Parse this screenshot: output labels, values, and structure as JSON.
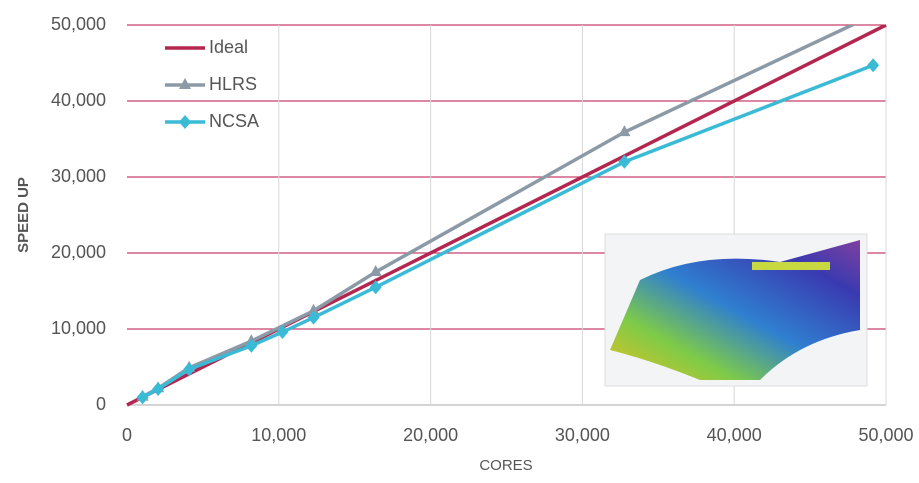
{
  "chart_data": {
    "type": "line",
    "x_label": "CORES",
    "y_label": "SPEED UP",
    "xlim": [
      0,
      50000
    ],
    "ylim": [
      0,
      50000
    ],
    "xticks": [
      0,
      {
        "value": 10000,
        "label": "10,000"
      },
      {
        "value": 20000,
        "label": "20,000"
      },
      {
        "value": 30000,
        "label": "30,000"
      },
      {
        "value": 40000,
        "label": "40,000"
      },
      {
        "value": 50000,
        "label": "50,000"
      }
    ],
    "yticks": [
      0,
      {
        "value": 10000,
        "label": "10,000"
      },
      {
        "value": 20000,
        "label": "20,000"
      },
      {
        "value": 30000,
        "label": "30,000"
      },
      {
        "value": 40000,
        "label": "40,000"
      },
      {
        "value": 50000,
        "label": "50,000"
      }
    ],
    "grid": true,
    "legend": "upper left",
    "series": [
      {
        "name": "Ideal",
        "color": "#b3264f",
        "marker": "none",
        "x": [
          0,
          50000
        ],
        "values": [
          0,
          50000
        ]
      },
      {
        "name": "HLRS",
        "color": "#8b9aa6",
        "marker": "triangle",
        "x": [
          1024,
          2048,
          4096,
          8192,
          12288,
          16384,
          32768,
          49152
        ],
        "values": [
          1100,
          2200,
          4900,
          8400,
          12400,
          17500,
          35900,
          51300
        ]
      },
      {
        "name": "NCSA",
        "color": "#3bbad6",
        "marker": "diamond",
        "x": [
          1024,
          2048,
          4096,
          8192,
          10240,
          12288,
          16384,
          32768,
          49152
        ],
        "values": [
          1000,
          2100,
          4700,
          7800,
          9600,
          11500,
          15500,
          32000,
          44700
        ]
      }
    ]
  }
}
